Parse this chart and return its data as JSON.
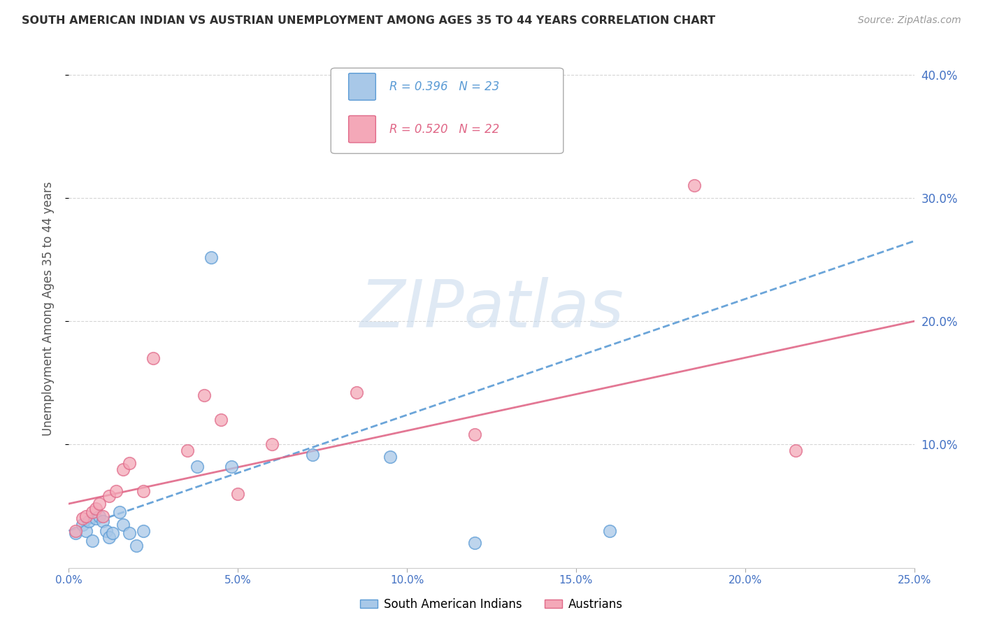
{
  "title": "SOUTH AMERICAN INDIAN VS AUSTRIAN UNEMPLOYMENT AMONG AGES 35 TO 44 YEARS CORRELATION CHART",
  "source": "Source: ZipAtlas.com",
  "ylabel": "Unemployment Among Ages 35 to 44 years",
  "xlim": [
    0.0,
    0.25
  ],
  "ylim": [
    0.0,
    0.42
  ],
  "xticks": [
    0.0,
    0.05,
    0.1,
    0.15,
    0.2,
    0.25
  ],
  "yticks": [
    0.1,
    0.2,
    0.3,
    0.4
  ],
  "xtick_labels": [
    "0.0%",
    "5.0%",
    "10.0%",
    "15.0%",
    "20.0%",
    "25.0%"
  ],
  "ytick_labels_right": [
    "10.0%",
    "20.0%",
    "30.0%",
    "40.0%"
  ],
  "legend_text1": "R = 0.396   N = 23",
  "legend_text2": "R = 0.520   N = 22",
  "legend_label1": "South American Indians",
  "legend_label2": "Austrians",
  "color_blue": "#a8c8e8",
  "color_pink": "#f4a8b8",
  "line_blue": "#5b9bd5",
  "line_pink": "#e06888",
  "bg_color": "#ffffff",
  "grid_color": "#cccccc",
  "title_color": "#303030",
  "axis_label_color": "#555555",
  "tick_color": "#4472c4",
  "watermark_color": "#c5d8ec",
  "blue_x": [
    0.002,
    0.004,
    0.005,
    0.006,
    0.007,
    0.008,
    0.009,
    0.01,
    0.011,
    0.012,
    0.013,
    0.015,
    0.016,
    0.018,
    0.02,
    0.022,
    0.038,
    0.042,
    0.048,
    0.072,
    0.095,
    0.12,
    0.16
  ],
  "blue_y": [
    0.028,
    0.035,
    0.03,
    0.038,
    0.022,
    0.04,
    0.042,
    0.038,
    0.03,
    0.025,
    0.028,
    0.045,
    0.035,
    0.028,
    0.018,
    0.03,
    0.082,
    0.252,
    0.082,
    0.092,
    0.09,
    0.02,
    0.03
  ],
  "pink_x": [
    0.002,
    0.004,
    0.005,
    0.007,
    0.008,
    0.009,
    0.01,
    0.012,
    0.014,
    0.016,
    0.018,
    0.022,
    0.025,
    0.035,
    0.04,
    0.045,
    0.05,
    0.06,
    0.085,
    0.12,
    0.185,
    0.215
  ],
  "pink_y": [
    0.03,
    0.04,
    0.042,
    0.045,
    0.048,
    0.052,
    0.042,
    0.058,
    0.062,
    0.08,
    0.085,
    0.062,
    0.17,
    0.095,
    0.14,
    0.12,
    0.06,
    0.1,
    0.142,
    0.108,
    0.31,
    0.095
  ],
  "blue_line_x0": 0.0,
  "blue_line_x1": 0.25,
  "blue_line_y0": 0.03,
  "blue_line_y1": 0.265,
  "pink_line_x0": 0.0,
  "pink_line_x1": 0.25,
  "pink_line_y0": 0.052,
  "pink_line_y1": 0.2
}
